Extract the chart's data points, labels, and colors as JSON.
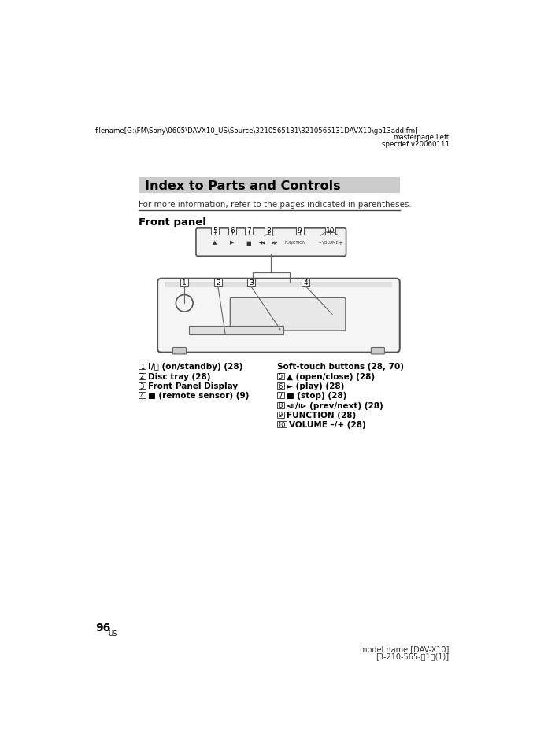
{
  "bg_color": "#ffffff",
  "header_filename": "filename[G:\\FM\\Sony\\0605\\DAVX10_US\\Source\\3210565131\\3210565131DAVX10\\gb13add.fm]",
  "header_masterpage": "masterpage:Left",
  "header_specdef": "specdef v20060111",
  "title": "Index to Parts and Controls",
  "title_bg": "#cccccc",
  "subtitle": "Front panel",
  "intro_text": "For more information, refer to the pages indicated in parentheses.",
  "left_items": [
    [
      "1",
      "I/⏻ (on/standby) (28)",
      "bold"
    ],
    [
      "2",
      "Disc tray (28)",
      "bold"
    ],
    [
      "3",
      "Front Panel Display",
      "bold"
    ],
    [
      "4",
      "■ (remote sensor) (9)",
      "bold"
    ]
  ],
  "right_header": "Soft-touch buttons (28, 70)",
  "right_items": [
    [
      "5",
      "▲ (open/close) (28)"
    ],
    [
      "6",
      "► (play) (28)"
    ],
    [
      "7",
      "■ (stop) (28)"
    ],
    [
      "8",
      "⧏/⧐ (prev/next) (28)"
    ],
    [
      "9",
      "FUNCTION (28)"
    ],
    [
      "10",
      "VOLUME –/+ (28)"
    ]
  ],
  "page_number": "96",
  "page_suffix": "US",
  "footer_model": "model name [DAV-X10]",
  "footer_ref": "[3-210-565-\u00131\u0013(1)]"
}
